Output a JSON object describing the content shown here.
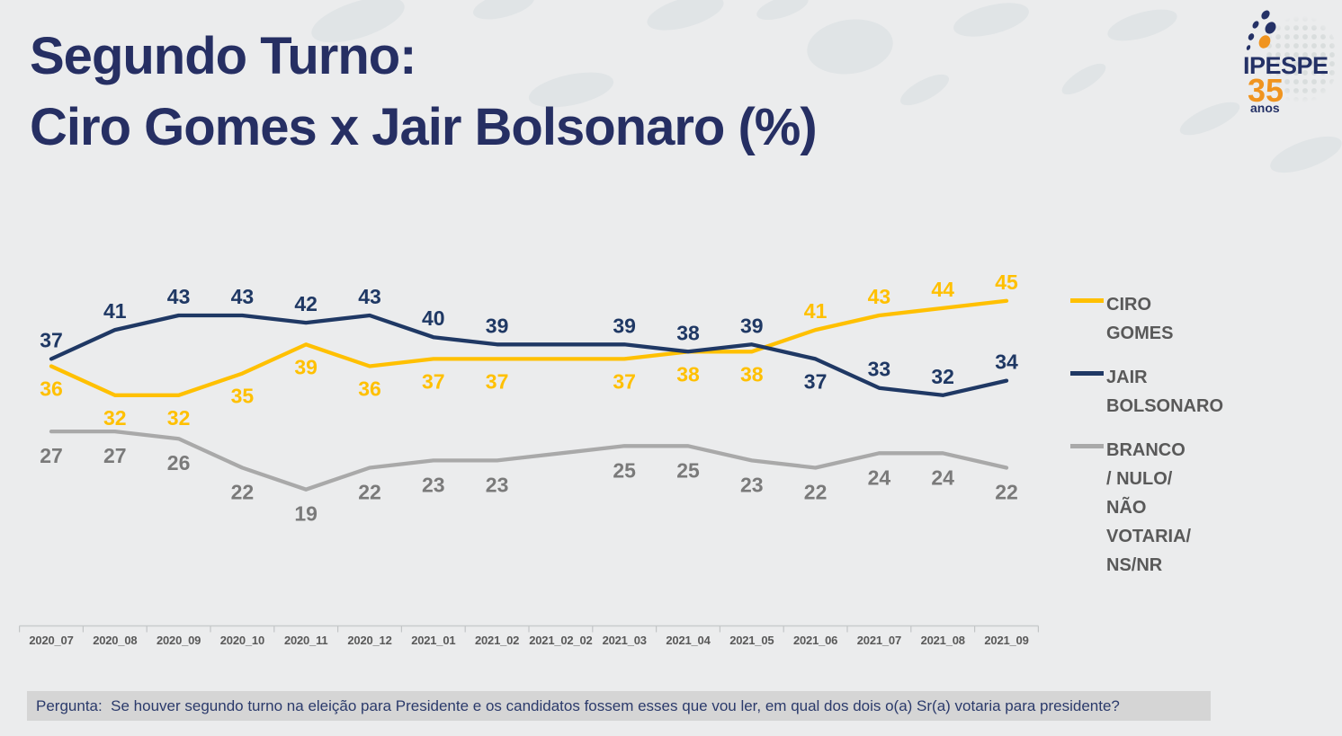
{
  "title": {
    "line1": "Segundo Turno:",
    "line2": "Ciro Gomes x Jair Bolsonaro (%)"
  },
  "logo": {
    "name": "IPESPE",
    "years": "35",
    "years_suffix": "anos"
  },
  "chart_data": {
    "type": "line",
    "title": "Segundo Turno: Ciro Gomes x Jair Bolsonaro (%)",
    "xlabel": "",
    "ylabel": "",
    "ylim": [
      0,
      50
    ],
    "grid": false,
    "legend_position": "right",
    "data_labels": true,
    "categories": [
      "2020_07",
      "2020_08",
      "2020_09",
      "2020_10",
      "2020_11",
      "2020_12",
      "2021_01",
      "2021_02",
      "2021_02_02",
      "2021_03",
      "2021_04",
      "2021_05",
      "2021_06",
      "2021_07",
      "2021_08",
      "2021_09"
    ],
    "series": [
      {
        "key": "ciro-gomes",
        "name": "CIRO GOMES",
        "legend_lines": [
          "CIRO GOMES"
        ],
        "color": "#FFC000",
        "label_color": "#FFC000",
        "values": [
          36,
          32,
          32,
          35,
          39,
          36,
          37,
          37,
          null,
          37,
          38,
          38,
          41,
          43,
          44,
          45
        ],
        "label_side": [
          "below",
          "below",
          "below",
          "below",
          "below",
          "below",
          "below",
          "below",
          null,
          "below",
          "below",
          "below",
          "above",
          "above",
          "above",
          "above"
        ]
      },
      {
        "key": "jair-bolsonaro",
        "name": "JAIR BOLSONARO",
        "legend_lines": [
          "JAIR BOLSONARO"
        ],
        "color": "#1F3864",
        "label_color": "#1F3864",
        "values": [
          37,
          41,
          43,
          43,
          42,
          43,
          40,
          39,
          null,
          39,
          38,
          39,
          37,
          33,
          32,
          34
        ],
        "label_side": [
          "above",
          "above",
          "above",
          "above",
          "above",
          "above",
          "above",
          "above",
          null,
          "above",
          "above",
          "above",
          "below",
          "above",
          "above",
          "above"
        ]
      },
      {
        "key": "branco-nulo",
        "name": "BRANCO / NULO/ NÃO VOTARIA/ NS/NR",
        "legend_lines": [
          "BRANCO / NULO/",
          "NÃO VOTARIA/",
          "NS/NR"
        ],
        "color": "#A9A9A9",
        "label_color": "#7A7A7A",
        "values": [
          27,
          27,
          26,
          22,
          19,
          22,
          23,
          23,
          null,
          25,
          25,
          23,
          22,
          24,
          24,
          22
        ],
        "label_side": [
          "below",
          "below",
          "below",
          "below",
          "below",
          "below",
          "below",
          "below",
          null,
          "below",
          "below",
          "below",
          "below",
          "below",
          "below",
          "below"
        ]
      }
    ]
  },
  "footer": {
    "question": "Pergunta:  Se houver segundo turno na eleição para Presidente e os candidatos fossem esses que vou ler, em qual dos dois o(a) Sr(a) votaria para presidente?"
  },
  "colors": {
    "background": "#ebeced",
    "title": "#262f63",
    "axis_text": "#595959",
    "legend_text": "#595959",
    "footer_bar": "#d5d5d5",
    "logo_navy": "#243166",
    "logo_orange": "#F0941F"
  }
}
